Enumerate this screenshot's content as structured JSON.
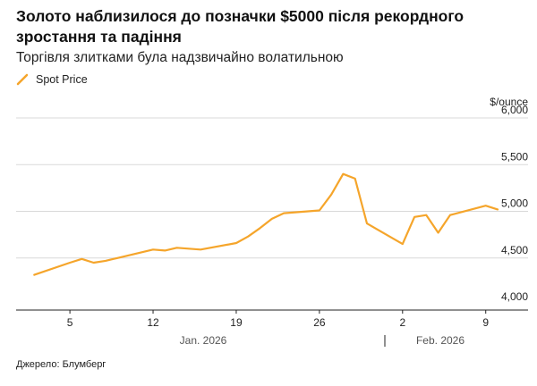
{
  "title": "Золото наблизилося до позначки $5000 після рекордного зростання та падіння",
  "subtitle": "Торгівля злитками була надзвичайно волатильною",
  "legend": {
    "label": "Spot Price",
    "icon": "line-icon"
  },
  "source": "Джерело: Блумберг",
  "colors": {
    "line": "#F5A52B",
    "grid": "#d9d9d9",
    "axis": "#222222"
  },
  "chart_data": {
    "type": "line",
    "title": "Золото наблизилося до позначки $5000 після рекордного зростання та падіння",
    "subtitle": "Торгівля злитками була надзвичайно волатильною",
    "ylabel": "$/ounce",
    "ylim": [
      4000,
      6000
    ],
    "y_ticks": [
      "4,000",
      "4,500",
      "5,000",
      "5,500",
      "6,000"
    ],
    "y_tick_values": [
      4000,
      4500,
      5000,
      5500,
      6000
    ],
    "x_ticks": [
      "5",
      "12",
      "19",
      "26",
      "2",
      "9"
    ],
    "x_tick_dates": [
      "2026-01-05",
      "2026-01-12",
      "2026-01-19",
      "2026-01-26",
      "2026-02-02",
      "2026-02-09"
    ],
    "x_range": [
      "2026-01-01",
      "2026-02-10"
    ],
    "month_labels": [
      "Jan. 2026",
      "Feb. 2026"
    ],
    "grid": "horizontal",
    "legend_position": "top-left",
    "series": [
      {
        "name": "Spot Price",
        "x": [
          "2026-01-02",
          "2026-01-05",
          "2026-01-06",
          "2026-01-07",
          "2026-01-08",
          "2026-01-09",
          "2026-01-12",
          "2026-01-13",
          "2026-01-14",
          "2026-01-15",
          "2026-01-16",
          "2026-01-19",
          "2026-01-20",
          "2026-01-21",
          "2026-01-22",
          "2026-01-23",
          "2026-01-26",
          "2026-01-27",
          "2026-01-28",
          "2026-01-29",
          "2026-01-30",
          "2026-02-02",
          "2026-02-03",
          "2026-02-04",
          "2026-02-05",
          "2026-02-06",
          "2026-02-09",
          "2026-02-10"
        ],
        "values": [
          4320,
          4450,
          4490,
          4450,
          4470,
          4500,
          4590,
          4580,
          4610,
          4600,
          4590,
          4660,
          4730,
          4820,
          4920,
          4980,
          5010,
          5180,
          5400,
          5350,
          4870,
          4650,
          4940,
          4960,
          4770,
          4960,
          5060,
          5020
        ]
      }
    ]
  }
}
